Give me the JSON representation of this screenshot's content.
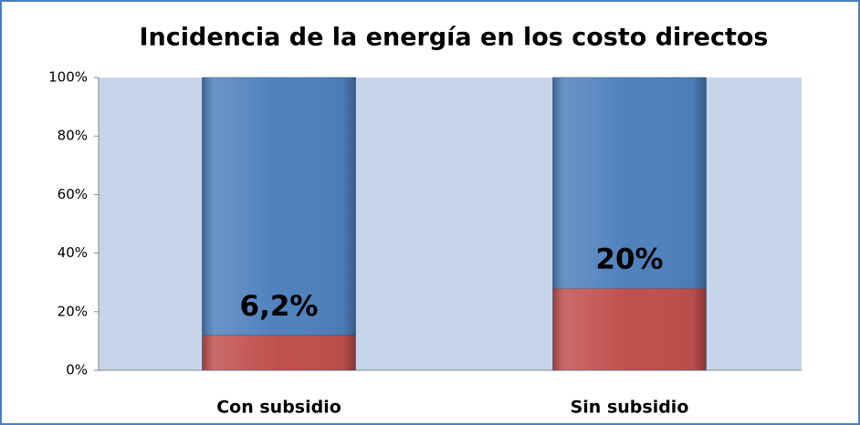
{
  "chart_data": {
    "type": "stacked_bar_100",
    "title": "Incidencia de la energía en los costo directos",
    "categories": [
      "Con subsidio",
      "Sin subsidio"
    ],
    "series": [
      {
        "color": "#c0504d",
        "values": [
          12,
          28
        ]
      },
      {
        "color": "#4f81bd",
        "values": [
          88,
          72
        ]
      }
    ],
    "annotations": [
      "6,2%",
      "20%"
    ],
    "ylim": [
      0,
      100
    ],
    "yticks": [
      {
        "value": 0,
        "label": "0%"
      },
      {
        "value": 20,
        "label": "20%"
      },
      {
        "value": 40,
        "label": "40%"
      },
      {
        "value": 60,
        "label": "60%"
      },
      {
        "value": 80,
        "label": "80%"
      },
      {
        "value": 100,
        "label": "100%"
      }
    ],
    "plot_background": "#c6d5ea"
  }
}
